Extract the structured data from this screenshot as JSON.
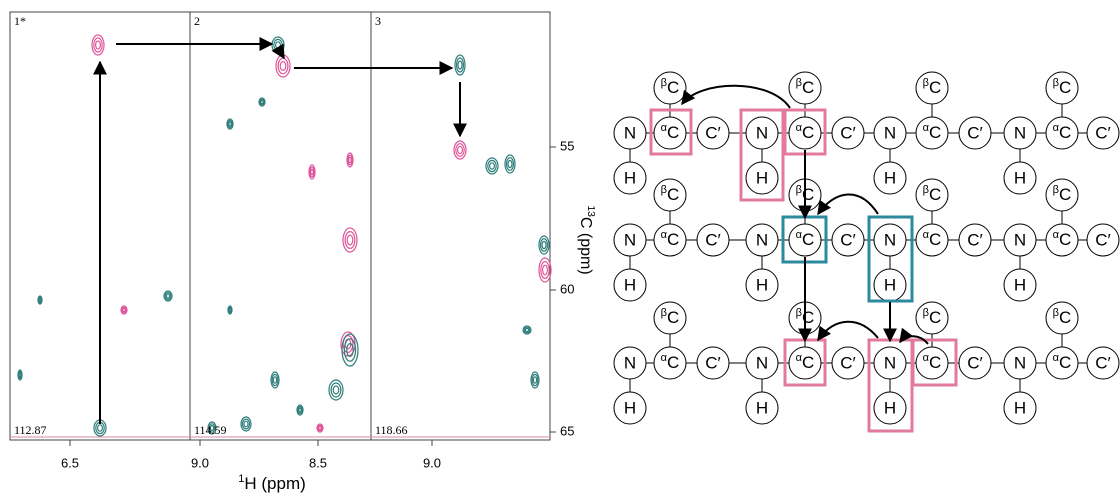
{
  "spectra": {
    "strips": [
      {
        "label": "1*",
        "plane": "112.87"
      },
      {
        "label": "2",
        "plane": "114.59"
      },
      {
        "label": "3",
        "plane": "118.66"
      }
    ],
    "x_tick_labels": [
      "6.5",
      "9.0",
      "8.5",
      "9.0"
    ],
    "x_axis_label": {
      "sup": "1",
      "text": "H (ppm)"
    },
    "y_tick_labels": [
      "55",
      "60",
      "65"
    ],
    "y_axis_label": {
      "sup": "13",
      "text": "C (ppm)"
    }
  },
  "diagram": {
    "atoms": {
      "n": "N",
      "h": "H",
      "ca": {
        "sup": "α",
        "text": "C"
      },
      "cb": {
        "sup": "β",
        "text": "C"
      },
      "co": "C′"
    }
  }
}
